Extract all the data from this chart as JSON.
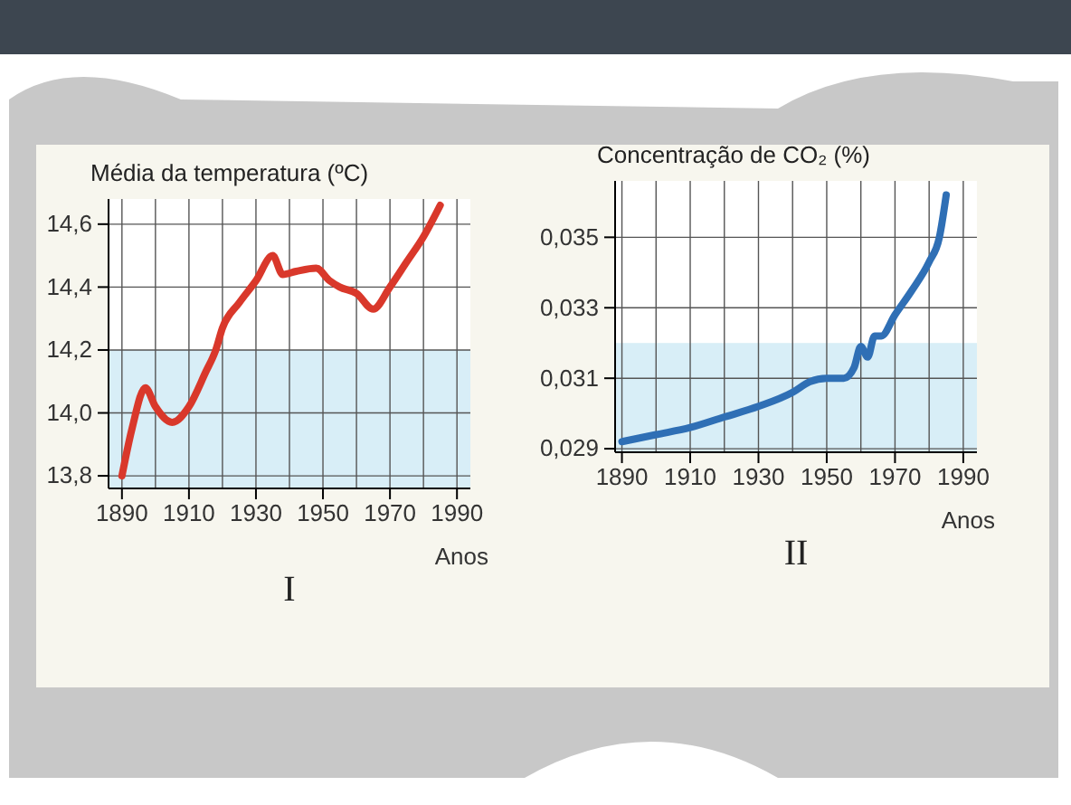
{
  "chart_data": [
    {
      "type": "line",
      "title": "Média da temperatura (ºC)",
      "xlabel": "Anos",
      "annotations": [
        "I"
      ],
      "grid": true,
      "bands": [
        {
          "axis": "y",
          "from": 13.76,
          "to": 14.2,
          "color": "#d8eef7"
        }
      ],
      "marker": "none",
      "line_style": "solid",
      "xlim": [
        1886,
        1994
      ],
      "ylim": [
        13.76,
        14.68
      ],
      "xticks": [
        1890,
        1910,
        1930,
        1950,
        1970,
        1990
      ],
      "yticks": [
        {
          "value": 13.8,
          "label": "13,8"
        },
        {
          "value": 14.0,
          "label": "14,0"
        },
        {
          "value": 14.2,
          "label": "14,2"
        },
        {
          "value": 14.4,
          "label": "14,4"
        },
        {
          "value": 14.6,
          "label": "14,6"
        }
      ],
      "series": [
        {
          "color": "#d9382b",
          "x": [
            1890,
            1893,
            1897,
            1900,
            1905,
            1910,
            1915,
            1918,
            1920,
            1925,
            1930,
            1935,
            1938,
            1942,
            1948,
            1952,
            1955,
            1960,
            1965,
            1970,
            1975,
            1980,
            1985
          ],
          "values": [
            13.8,
            13.95,
            14.08,
            14.02,
            13.97,
            14.02,
            14.13,
            14.2,
            14.27,
            14.35,
            14.42,
            14.5,
            14.44,
            14.45,
            14.46,
            14.42,
            14.4,
            14.38,
            14.33,
            14.4,
            14.48,
            14.56,
            14.66
          ]
        }
      ]
    },
    {
      "type": "line",
      "title": "Concentração de CO₂ (%)",
      "xlabel": "Anos",
      "annotations": [
        "II"
      ],
      "grid": true,
      "bands": [
        {
          "axis": "y",
          "from": 0.0289,
          "to": 0.032,
          "color": "#d8eef7"
        }
      ],
      "marker": "none",
      "line_style": "solid",
      "xlim": [
        1888,
        1994
      ],
      "ylim": [
        0.0289,
        0.0366
      ],
      "xticks": [
        1890,
        1910,
        1930,
        1950,
        1970,
        1990
      ],
      "yticks": [
        {
          "value": 0.029,
          "label": "0,029"
        },
        {
          "value": 0.031,
          "label": "0,031"
        },
        {
          "value": 0.033,
          "label": "0,033"
        },
        {
          "value": 0.035,
          "label": "0,035"
        }
      ],
      "series": [
        {
          "color": "#2f6fb5",
          "x": [
            1890,
            1900,
            1910,
            1920,
            1930,
            1940,
            1945,
            1950,
            1955,
            1958,
            1960,
            1962,
            1964,
            1966,
            1970,
            1975,
            1980,
            1983,
            1985
          ],
          "values": [
            0.0292,
            0.0294,
            0.0296,
            0.0299,
            0.0302,
            0.0306,
            0.0309,
            0.031,
            0.031,
            0.0313,
            0.0319,
            0.0316,
            0.0322,
            0.0322,
            0.0328,
            0.0335,
            0.0343,
            0.035,
            0.0362
          ]
        }
      ]
    }
  ]
}
